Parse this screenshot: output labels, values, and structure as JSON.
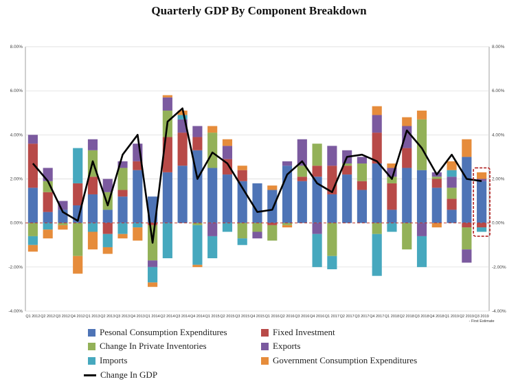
{
  "chart_data": {
    "type": "bar",
    "subtype": "stacked-bar-with-line",
    "title": "Quarterly GDP By Component Breakdown",
    "ylim": [
      -4,
      8
    ],
    "yticks": [
      "-4.00%",
      "-2.00%",
      "0.00%",
      "2.00%",
      "4.00%",
      "6.00%",
      "8.00%"
    ],
    "ytick_values": [
      -4,
      -2,
      0,
      2,
      4,
      6,
      8
    ],
    "grid": "horizontal",
    "legend_position": "bottom",
    "categories": [
      "Q1 2012",
      "Q2 2012",
      "Q3 2012",
      "Q4 2012",
      "Q1 2013",
      "Q2 2013",
      "Q3 2013",
      "Q4 2013",
      "Q1 2014",
      "Q2 2014",
      "Q3 2014",
      "Q4 2014",
      "Q1 2015",
      "Q2 2015",
      "Q3 2015",
      "Q4 2015",
      "Q1 2016",
      "Q2 2016",
      "Q3 2016",
      "Q4 2016",
      "Q1 2017",
      "Q2 2017",
      "Q3 2017",
      "Q4 2017",
      "Q1 2018",
      "Q2 2018",
      "Q3 2018",
      "Q4 2018",
      "Q1 2019",
      "Q2 2019",
      "Q3 2019"
    ],
    "last_category_note": "- First Estimate",
    "highlight_last": true,
    "colors": {
      "pce": "#4e74b6",
      "fixed": "#b84a48",
      "inventories": "#93b158",
      "exports": "#7b5a9f",
      "imports": "#46a8be",
      "government": "#e68c3b",
      "gdp_line": "#000000",
      "zero_line": "#c0392b",
      "highlight": "#b22222"
    },
    "series": [
      {
        "name": "Pesonal Consumption Expenditures",
        "key": "pce",
        "values": [
          1.6,
          0.5,
          0.6,
          0.8,
          1.3,
          0.6,
          1.2,
          2.4,
          1.2,
          2.3,
          2.6,
          3.3,
          2.5,
          2.2,
          1.9,
          1.8,
          1.5,
          2.6,
          1.9,
          2.1,
          1.3,
          2.2,
          1.5,
          2.7,
          0.6,
          2.5,
          2.4,
          1.6,
          0.6,
          3.0,
          1.9
        ]
      },
      {
        "name": "Fixed Investment",
        "key": "fixed",
        "values": [
          2.0,
          0.9,
          0.0,
          1.0,
          0.8,
          -0.5,
          0.3,
          0.4,
          -0.1,
          1.6,
          1.5,
          0.6,
          0.0,
          0.7,
          0.5,
          0.0,
          -0.1,
          0.0,
          0.2,
          0.5,
          1.3,
          0.4,
          0.4,
          1.4,
          1.2,
          0.9,
          0.0,
          0.4,
          0.5,
          -0.2,
          -0.2
        ]
      },
      {
        "name": "Change In Private Inventories",
        "key": "inventories",
        "values": [
          -0.6,
          0.5,
          -0.1,
          -1.5,
          1.2,
          0.8,
          1.0,
          0.0,
          -1.6,
          1.2,
          0.0,
          -0.1,
          1.6,
          0.0,
          -0.7,
          -0.4,
          -0.7,
          -0.1,
          0.5,
          1.0,
          -1.5,
          0.1,
          0.8,
          -0.5,
          0.3,
          -1.2,
          2.3,
          0.1,
          0.5,
          -1.0,
          0.0
        ]
      },
      {
        "name": "Exports",
        "key": "exports",
        "values": [
          0.4,
          0.6,
          0.4,
          0.0,
          0.5,
          0.6,
          0.3,
          0.8,
          -0.3,
          0.6,
          0.6,
          0.5,
          -0.6,
          0.6,
          0.0,
          -0.3,
          0.0,
          0.2,
          1.2,
          -0.5,
          0.9,
          0.6,
          0.3,
          0.8,
          0.4,
          1.0,
          -0.6,
          0.2,
          0.5,
          -0.6,
          0.1
        ]
      },
      {
        "name": "Imports",
        "key": "imports",
        "values": [
          -0.4,
          -0.3,
          0.0,
          1.6,
          -0.4,
          -0.6,
          -0.5,
          -0.2,
          -0.7,
          -1.6,
          0.2,
          -1.8,
          -1.0,
          -0.4,
          -0.3,
          0.0,
          0.0,
          0.0,
          0.0,
          -1.5,
          -0.6,
          0.0,
          0.0,
          -1.9,
          -0.4,
          0.0,
          -1.4,
          0.0,
          0.3,
          0.0,
          -0.2
        ]
      },
      {
        "name": "Government Consumption Expenditures",
        "key": "government",
        "values": [
          -0.3,
          -0.4,
          -0.2,
          -0.8,
          -0.8,
          -0.3,
          -0.2,
          -0.6,
          -0.2,
          0.1,
          0.2,
          -0.1,
          0.3,
          0.3,
          0.2,
          0.0,
          0.2,
          -0.1,
          0.0,
          0.0,
          0.0,
          0.0,
          0.0,
          0.4,
          0.2,
          0.4,
          0.4,
          -0.2,
          0.4,
          0.8,
          0.3
        ]
      }
    ],
    "line": {
      "name": "Change In GDP",
      "values": [
        2.7,
        1.9,
        0.5,
        0.1,
        2.8,
        0.8,
        3.1,
        4.0,
        -0.9,
        4.6,
        5.2,
        2.0,
        3.2,
        2.7,
        1.6,
        0.5,
        0.6,
        2.2,
        2.8,
        1.8,
        1.4,
        3.0,
        3.1,
        2.8,
        2.0,
        4.2,
        3.4,
        2.2,
        3.1,
        2.0,
        1.9
      ]
    }
  },
  "legend": {
    "pce": "Pesonal Consumption Expenditures",
    "fixed": "Fixed Investment",
    "inventories": "Change In Private Inventories",
    "exports": "Exports",
    "imports": "Imports",
    "government": "Government Consumption Expenditures",
    "gdp_line": "Change In GDP"
  }
}
